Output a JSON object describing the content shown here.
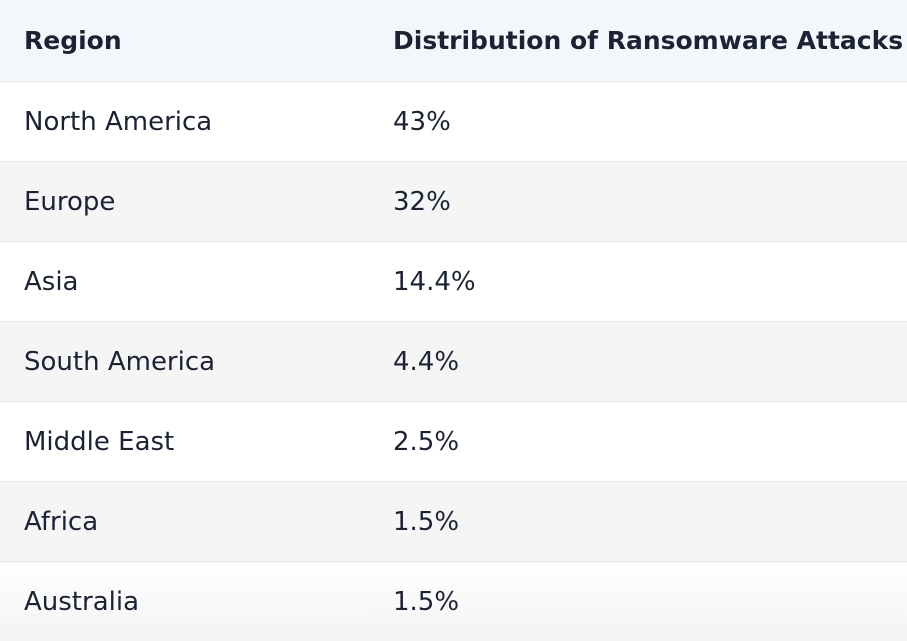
{
  "table": {
    "header": [
      "Region",
      "Distribution of Ransomware Attacks"
    ],
    "rows": [
      [
        "North America",
        "43%"
      ],
      [
        "Europe",
        "32%"
      ],
      [
        "Asia",
        "14.4%"
      ],
      [
        "South America",
        "4.4%"
      ],
      [
        "Middle East",
        "2.5%"
      ],
      [
        "Africa",
        "1.5%"
      ],
      [
        "Australia",
        "1.5%"
      ]
    ]
  }
}
